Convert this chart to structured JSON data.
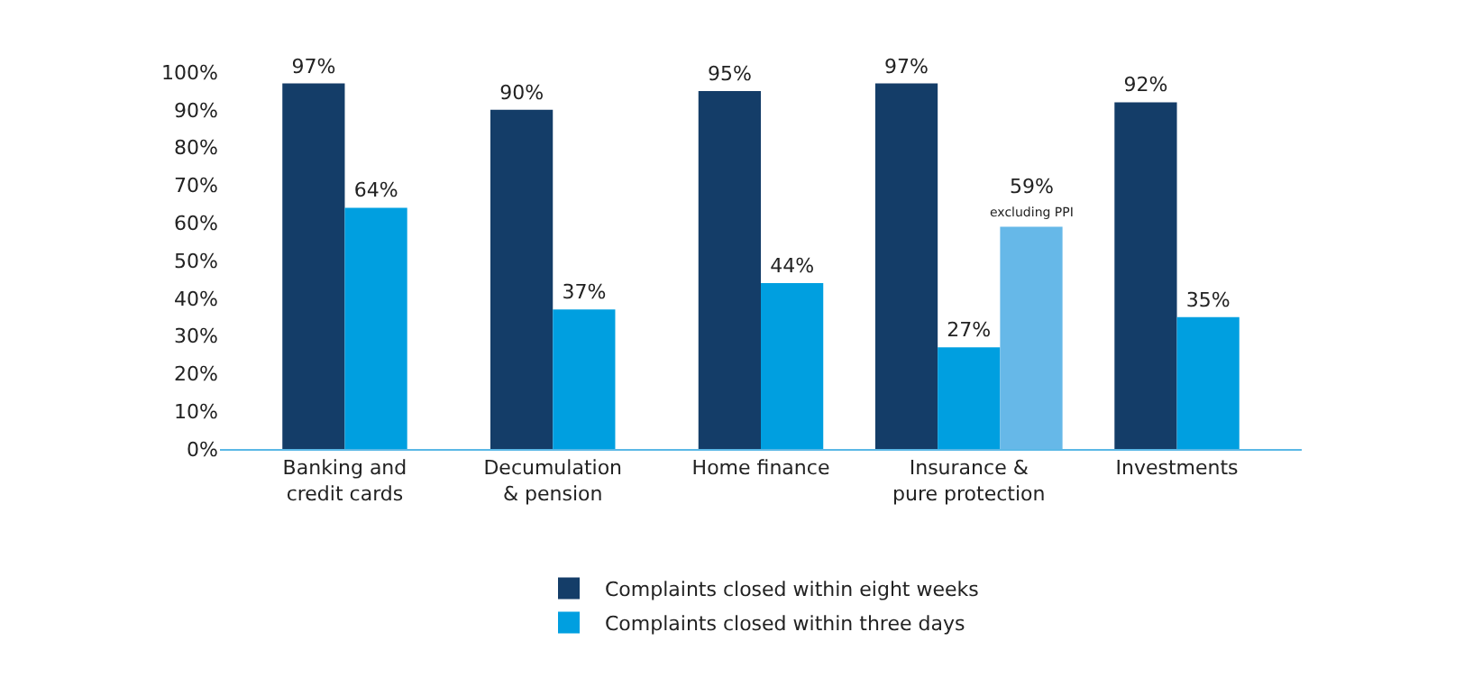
{
  "chart_data": {
    "type": "bar",
    "categories": [
      "Banking and\ncredit cards",
      "Decumulation\n& pension",
      "Home finance",
      "Insurance &\npure protection",
      "Investments"
    ],
    "series": [
      {
        "name": "Complaints closed within eight weeks",
        "color": "#143d68",
        "values": [
          97,
          90,
          95,
          97,
          92
        ],
        "value_labels": [
          "97%",
          "90%",
          "95%",
          "97%",
          "92%"
        ]
      },
      {
        "name": "Complaints closed within three days",
        "color": "#009fe0",
        "values": [
          64,
          37,
          44,
          27,
          35
        ],
        "value_labels": [
          "64%",
          "37%",
          "44%",
          "27%",
          "35%"
        ]
      },
      {
        "color": "#66b8e8",
        "values": [
          null,
          null,
          null,
          59,
          null
        ],
        "value_labels": [
          null,
          null,
          null,
          "59%",
          null
        ]
      }
    ],
    "ylim": [
      0,
      100
    ],
    "yticks": [
      {
        "value": 0,
        "label": "0%"
      },
      {
        "value": 10,
        "label": "10%"
      },
      {
        "value": 20,
        "label": "20%"
      },
      {
        "value": 30,
        "label": "30%"
      },
      {
        "value": 40,
        "label": "40%"
      },
      {
        "value": 50,
        "label": "50%"
      },
      {
        "value": 60,
        "label": "60%"
      },
      {
        "value": 70,
        "label": "70%"
      },
      {
        "value": 80,
        "label": "80%"
      },
      {
        "value": 90,
        "label": "90%"
      },
      {
        "value": 100,
        "label": "100%"
      }
    ],
    "annotations": [
      "excluding PPI"
    ],
    "legend": "bottom"
  }
}
